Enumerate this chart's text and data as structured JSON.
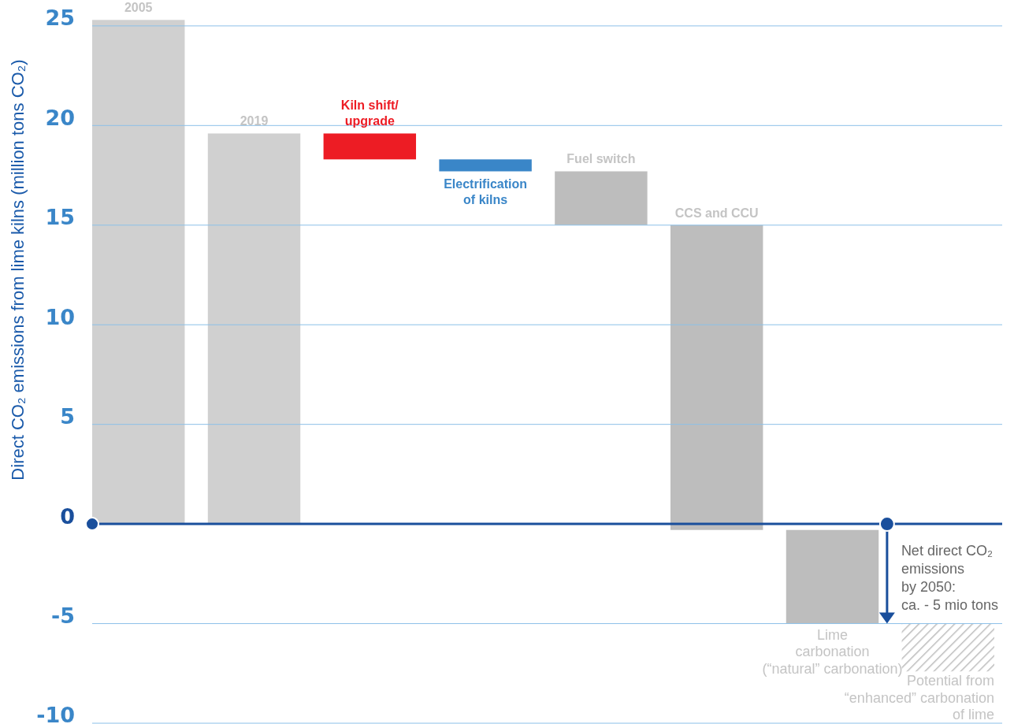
{
  "chart_data": {
    "type": "bar",
    "ylabel": "Direct CO₂ emissions from lime kilns (million tons CO₂)",
    "categories": [
      "2005",
      "2019",
      "Kiln shift/\nupgrade",
      "Electrification\nof kilns",
      "Fuel switch",
      "CCS and CCU",
      "Lime\ncarbonation\n(“natural” carbonation)",
      "Potential from\n“enhanced” carbonation\nof lime"
    ],
    "values": [
      25.3,
      19.6,
      -1.3,
      -0.6,
      -2.7,
      -15.3,
      -4.7,
      -2.4
    ],
    "base": [
      0,
      0,
      19.6,
      18.3,
      17.7,
      15,
      -0.3,
      -5
    ],
    "colors": [
      "#d0d0d0",
      "#d0d0d0",
      "#ed1c24",
      "#3a86c8",
      "#bdbdbd",
      "#bdbdbd",
      "#bdbdbd",
      "#bdbdbd"
    ],
    "ref_lines": [
      {
        "axis": "y",
        "value": 0,
        "color": "#1a4f9c"
      }
    ],
    "ylim": [
      -10,
      26.3
    ],
    "yticks": [
      -10,
      -5,
      0,
      5,
      10,
      15,
      20,
      25
    ],
    "grid": "y",
    "annotations": [
      {
        "text": "Net direct CO₂\nemissions\nby 2050:\nca. - 5 mio tons",
        "y": -5
      }
    ]
  }
}
